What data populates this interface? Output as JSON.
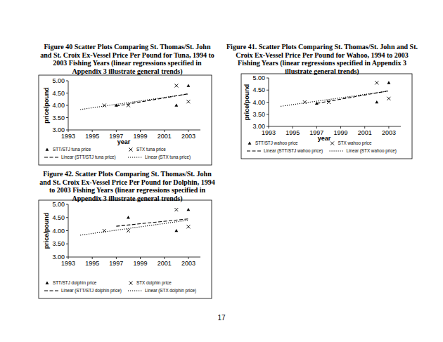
{
  "chart_data": [
    {
      "type": "scatter",
      "title": "Figure 40  Scatter Plots Comparing St. Thomas/St. John and St. Croix Ex-Vessel Price Per Pound for Tuna, 1994 to 2003 Fishing Years (linear regressions specified in Appendix 3 illustrate general trends)",
      "x_label": "year",
      "y_label": "price/pound",
      "xlim": [
        1993,
        2004
      ],
      "xticks": [
        1993,
        1995,
        1997,
        1999,
        2001,
        2003
      ],
      "ylim": [
        3,
        5
      ],
      "yticks": [
        {
          "value": 3,
          "label": "3.00"
        },
        {
          "value": 3.5,
          "label": "3.50"
        },
        {
          "value": 4,
          "label": "4.00"
        },
        {
          "value": 4.5,
          "label": "4.50"
        },
        {
          "value": 5,
          "label": "5.00"
        }
      ],
      "grid": false,
      "series": [
        {
          "name": "STT/STJ tuna price",
          "type": "scatter",
          "marker": "triangle",
          "color": "#000000",
          "x": [
            1997,
            2002,
            2003
          ],
          "values": [
            4.0,
            4.0,
            4.8
          ]
        },
        {
          "name": "STX tuna price",
          "type": "scatter",
          "marker": "x",
          "color": "#000000",
          "x": [
            1996,
            1998,
            2002,
            2003
          ],
          "values": [
            4.0,
            4.0,
            4.8,
            4.15
          ]
        },
        {
          "name": "Linear (STT/STJ tuna price)",
          "type": "line",
          "line_style": "dashed",
          "color": "#000000",
          "x": [
            1997,
            2003
          ],
          "values": [
            3.97,
            4.47
          ]
        },
        {
          "name": "Linear (STX tuna price)",
          "type": "line",
          "line_style": "dotted",
          "color": "#000000",
          "x": [
            1994,
            2003
          ],
          "values": [
            3.83,
            4.46
          ]
        }
      ]
    },
    {
      "type": "scatter",
      "title": "Figure 41.  Scatter Plots Comparing St. Thomas/St. John and St. Croix Ex-Vessel Price Per Pound for Wahoo, 1994 to 2003 Fishing Years (linear regressions specified in Appendix 3 illustrate general trends)",
      "x_label": "year",
      "y_label": "price/pound",
      "xlim": [
        1993,
        2004
      ],
      "xticks": [
        1993,
        1995,
        1997,
        1999,
        2001,
        2003
      ],
      "ylim": [
        3,
        5
      ],
      "yticks": [
        {
          "value": 3,
          "label": "3.00"
        },
        {
          "value": 3.5,
          "label": "3.50"
        },
        {
          "value": 4,
          "label": "4.00"
        },
        {
          "value": 4.5,
          "label": "4.50"
        },
        {
          "value": 5,
          "label": "5.00"
        }
      ],
      "grid": false,
      "series": [
        {
          "name": "STT/STJ wahoo price",
          "type": "scatter",
          "marker": "triangle",
          "color": "#000000",
          "x": [
            1997,
            2002,
            2003
          ],
          "values": [
            3.95,
            4.0,
            4.8
          ]
        },
        {
          "name": "STX wahoo price",
          "type": "scatter",
          "marker": "x",
          "color": "#000000",
          "x": [
            1996,
            1998,
            2002,
            2003
          ],
          "values": [
            4.0,
            4.0,
            4.8,
            4.15
          ]
        },
        {
          "name": "Linear (STT/STJ wahoo price)",
          "type": "line",
          "line_style": "dashed",
          "color": "#000000",
          "x": [
            1997,
            2003
          ],
          "values": [
            3.95,
            4.47
          ]
        },
        {
          "name": "Linear (STX wahoo price)",
          "type": "line",
          "line_style": "dotted",
          "color": "#000000",
          "x": [
            1994,
            2003
          ],
          "values": [
            3.83,
            4.46
          ]
        }
      ]
    },
    {
      "type": "scatter",
      "title": "Figure 42.  Scatter Plots Comparing St. Thomas/St. John and St. Croix Ex-Vessel Price Per Pound for Dolphin, 1994 to 2003 Fishing Years (linear regressions specified in Appendix 3 illustrate general trends)",
      "y_label": "price/pound",
      "xlim": [
        1993,
        2004
      ],
      "xticks": [
        1993,
        1995,
        1997,
        1999,
        2001,
        2003
      ],
      "ylim": [
        3,
        5
      ],
      "yticks": [
        {
          "value": 3,
          "label": "3.00"
        },
        {
          "value": 3.5,
          "label": "3.50"
        },
        {
          "value": 4,
          "label": "4.00"
        },
        {
          "value": 4.5,
          "label": "4.50"
        },
        {
          "value": 5,
          "label": "5.00"
        }
      ],
      "grid": false,
      "series": [
        {
          "name": "STT/STJ dolphin price",
          "type": "scatter",
          "marker": "triangle",
          "color": "#000000",
          "x": [
            1998,
            2002,
            2003
          ],
          "values": [
            4.5,
            4.0,
            4.8
          ]
        },
        {
          "name": "STX dolphin price",
          "type": "scatter",
          "marker": "x",
          "color": "#000000",
          "x": [
            1996,
            1998,
            2002,
            2003
          ],
          "values": [
            4.0,
            4.0,
            4.8,
            4.15
          ]
        },
        {
          "name": "Linear (STT/STJ dolphin price)",
          "type": "line",
          "line_style": "dashed",
          "color": "#000000",
          "x": [
            1997,
            2003
          ],
          "values": [
            4.17,
            4.45
          ]
        },
        {
          "name": "Linear (STX dolphin price)",
          "type": "line",
          "line_style": "dotted",
          "color": "#000000",
          "x": [
            1994,
            2003
          ],
          "values": [
            3.83,
            4.4
          ]
        }
      ]
    }
  ],
  "page_number": "17"
}
